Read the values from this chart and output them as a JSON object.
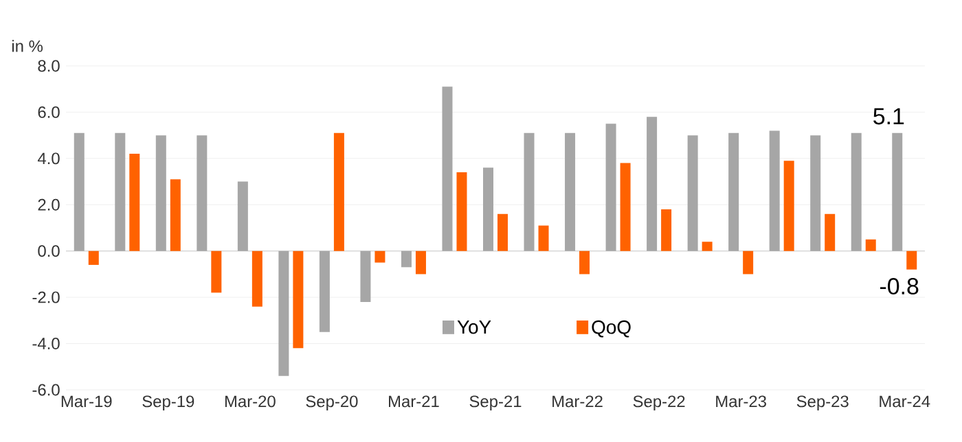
{
  "chart_data": {
    "type": "bar",
    "ylabel": "in %",
    "categories": [
      "Mar-19",
      null,
      "Sep-19",
      null,
      "Mar-20",
      null,
      "Sep-20",
      null,
      "Mar-21",
      null,
      "Sep-21",
      null,
      "Mar-22",
      null,
      "Sep-22",
      null,
      "Mar-23",
      null,
      "Sep-23",
      null,
      "Mar-24"
    ],
    "series": [
      {
        "name": "YoY",
        "color": "#a6a6a6",
        "values": [
          5.1,
          5.1,
          5.0,
          5.0,
          3.0,
          -5.4,
          -3.5,
          -2.2,
          -0.7,
          7.1,
          3.6,
          5.1,
          5.1,
          5.5,
          5.8,
          5.0,
          5.1,
          5.2,
          5.0,
          5.1,
          5.1
        ],
        "value_labels": [
          null,
          null,
          null,
          null,
          null,
          null,
          null,
          null,
          null,
          null,
          null,
          null,
          null,
          null,
          null,
          null,
          null,
          null,
          null,
          null,
          "5.1"
        ]
      },
      {
        "name": "QoQ",
        "color": "#ff6200",
        "values": [
          -0.6,
          4.2,
          3.1,
          -1.8,
          -2.4,
          -4.2,
          5.1,
          -0.5,
          -1.0,
          3.4,
          1.6,
          1.1,
          -1.0,
          3.8,
          1.8,
          0.4,
          -1.0,
          3.9,
          1.6,
          0.5,
          -0.8
        ],
        "value_labels": [
          null,
          null,
          null,
          null,
          null,
          null,
          null,
          null,
          null,
          null,
          null,
          null,
          null,
          null,
          null,
          null,
          null,
          null,
          null,
          null,
          "-0.8"
        ]
      }
    ],
    "ylim": [
      -6,
      8
    ],
    "yticks": [
      {
        "value": -6,
        "label": "-6.0"
      },
      {
        "value": -4,
        "label": "-4.0"
      },
      {
        "value": -2,
        "label": "-2.0"
      },
      {
        "value": 0,
        "label": "0.0"
      },
      {
        "value": 2,
        "label": "2.0"
      },
      {
        "value": 4,
        "label": "4.0"
      },
      {
        "value": 6,
        "label": "6.0"
      },
      {
        "value": 8,
        "label": "8.0"
      }
    ],
    "grid": "y",
    "legend": "bottom"
  }
}
